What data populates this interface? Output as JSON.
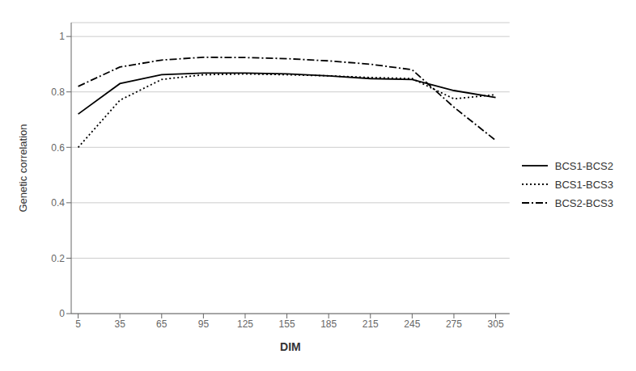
{
  "chart_data": {
    "type": "line",
    "x_label": "DIM",
    "y_label": "Genetic correlation",
    "x": [
      5,
      35,
      65,
      95,
      125,
      155,
      185,
      215,
      245,
      275,
      305
    ],
    "series": [
      {
        "name": "BCS1-BCS2",
        "color": "#000000",
        "line_style": "solid",
        "values": [
          0.72,
          0.83,
          0.862,
          0.868,
          0.868,
          0.865,
          0.858,
          0.848,
          0.845,
          0.805,
          0.78
        ]
      },
      {
        "name": "BCS1-BCS3",
        "color": "#000000",
        "line_style": "dotted",
        "values": [
          0.6,
          0.77,
          0.845,
          0.862,
          0.865,
          0.862,
          0.858,
          0.852,
          0.848,
          0.775,
          0.79
        ]
      },
      {
        "name": "BCS2-BCS3",
        "color": "#000000",
        "line_style": "dashdot",
        "values": [
          0.82,
          0.89,
          0.915,
          0.925,
          0.924,
          0.92,
          0.912,
          0.9,
          0.88,
          0.745,
          0.625
        ]
      }
    ],
    "xlim": [
      0,
      315
    ],
    "xticks": [
      5,
      35,
      65,
      95,
      125,
      155,
      185,
      215,
      245,
      275,
      305
    ],
    "ylim": [
      0,
      1.05
    ],
    "yticks": [
      0,
      0.2,
      0.4,
      0.6,
      0.8,
      1
    ],
    "grid": true,
    "legend": "right"
  }
}
